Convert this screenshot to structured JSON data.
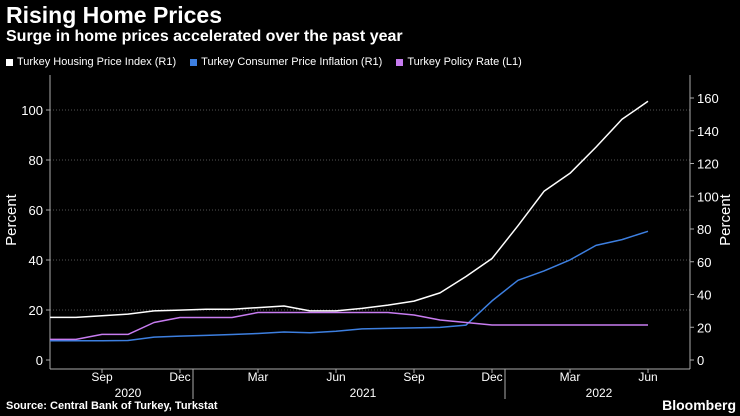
{
  "title": "Rising Home Prices",
  "subtitle": "Surge in home prices accelerated over the past year",
  "source": "Source: Central Bank of Turkey, Turkstat",
  "brand": "Bloomberg",
  "chart_data": {
    "type": "line",
    "x": [
      "2020-07",
      "2020-08",
      "2020-09",
      "2020-10",
      "2020-11",
      "2020-12",
      "2021-01",
      "2021-02",
      "2021-03",
      "2021-04",
      "2021-05",
      "2021-06",
      "2021-07",
      "2021-08",
      "2021-09",
      "2021-10",
      "2021-11",
      "2021-12",
      "2022-01",
      "2022-02",
      "2022-03",
      "2022-04",
      "2022-05",
      "2022-06"
    ],
    "x_tick_labels": [
      "Sep",
      "Dec",
      "Mar",
      "Jun",
      "Sep",
      "Dec",
      "Mar",
      "Jun"
    ],
    "year_labels": [
      "2020",
      "2021",
      "2022"
    ],
    "left_axis": {
      "label": "Percent",
      "ylim": [
        0,
        110
      ],
      "ticks": [
        "0",
        "20",
        "40",
        "60",
        "80",
        "100"
      ]
    },
    "right_axis": {
      "label": "Percent",
      "ylim": [
        0,
        176
      ],
      "ticks": [
        "0",
        "20",
        "40",
        "60",
        "80",
        "100",
        "120",
        "140",
        "160"
      ]
    },
    "series": [
      {
        "name": "Turkey Housing Price Index (R1)",
        "axis": "right",
        "color": "#ffffff",
        "values": [
          26,
          26,
          27,
          28,
          30,
          30.5,
          31,
          31,
          32,
          33,
          30,
          30,
          31.5,
          33.5,
          36,
          41,
          51,
          62,
          82,
          103,
          114,
          130,
          147,
          158
        ]
      },
      {
        "name": "Turkey Consumer Price Inflation (R1)",
        "axis": "right",
        "color": "#3d7fe0",
        "values": [
          11.8,
          11.8,
          11.8,
          11.9,
          14.0,
          14.6,
          15.0,
          15.6,
          16.2,
          17.1,
          16.6,
          17.5,
          19.0,
          19.3,
          19.6,
          19.9,
          21.3,
          36.1,
          48.7,
          54.4,
          61.1,
          70.0,
          73.5,
          78.6
        ]
      },
      {
        "name": "Turkey Policy Rate (L1)",
        "axis": "left",
        "color": "#c77cf0",
        "values": [
          8.25,
          8.25,
          10.25,
          10.25,
          15.0,
          17.0,
          17.0,
          17.0,
          19.0,
          19.0,
          19.0,
          19.0,
          19.0,
          19.0,
          18.0,
          16.0,
          15.0,
          14.0,
          14.0,
          14.0,
          14.0,
          14.0,
          14.0,
          14.0
        ]
      }
    ]
  }
}
